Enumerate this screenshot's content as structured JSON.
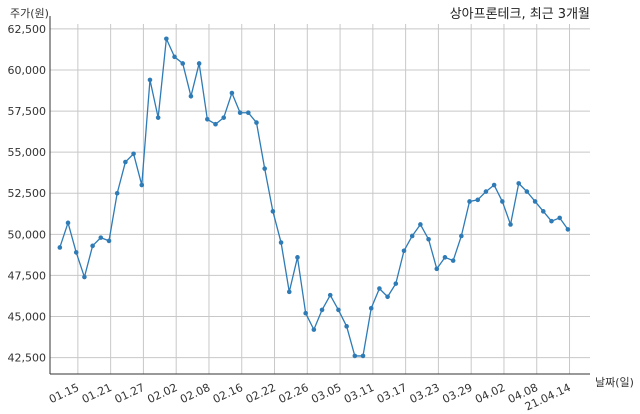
{
  "chart_data": {
    "type": "line",
    "title": "상아프론테크, 최근 3개월",
    "ylabel": "주가(원)",
    "xlabel": "날짜(일)",
    "ylim": [
      41500,
      62800
    ],
    "yticks": [
      42500,
      45000,
      47500,
      50000,
      52500,
      55000,
      57500,
      60000,
      62500
    ],
    "ytick_labels": [
      "42,500",
      "45,000",
      "47,500",
      "50,000",
      "52,500",
      "55,000",
      "57,500",
      "60,000",
      "62,500"
    ],
    "xticks": [
      {
        "index": 2.2,
        "label": "01.15"
      },
      {
        "index": 6.2,
        "label": "01.21"
      },
      {
        "index": 10.2,
        "label": "01.27"
      },
      {
        "index": 14.2,
        "label": "02.02"
      },
      {
        "index": 18.2,
        "label": "02.08"
      },
      {
        "index": 22.2,
        "label": "02.16"
      },
      {
        "index": 26.2,
        "label": "02.22"
      },
      {
        "index": 30.2,
        "label": "02.26"
      },
      {
        "index": 34.2,
        "label": "03.05"
      },
      {
        "index": 38.2,
        "label": "03.11"
      },
      {
        "index": 42.2,
        "label": "03.17"
      },
      {
        "index": 46.2,
        "label": "03.23"
      },
      {
        "index": 50.2,
        "label": "03.29"
      },
      {
        "index": 54.2,
        "label": "04.02"
      },
      {
        "index": 58.2,
        "label": "04.08"
      },
      {
        "index": 62.2,
        "label": "21.04.14"
      }
    ],
    "xlim": [
      -1.2,
      64.7
    ],
    "color": "#2e7bb6",
    "grid": true,
    "series": [
      {
        "values": [
          49200,
          50700,
          48900,
          47400,
          49300,
          49800,
          49600,
          52500,
          54400,
          54900,
          53000,
          59400,
          57100,
          61900,
          60800,
          60400,
          58400,
          60400,
          57000,
          56700,
          57100,
          58600,
          57400,
          57400,
          56800,
          54000,
          51400,
          49500,
          46500,
          48600,
          45200,
          44200,
          45400,
          46300,
          45400,
          44400,
          42600,
          42600,
          45500,
          46700,
          46200,
          47000,
          49000,
          49900,
          50600,
          49700,
          47900,
          48600,
          48400,
          49900,
          52000,
          52100,
          52600,
          53000,
          52000,
          50600,
          53100,
          52600,
          52000,
          51400,
          50800,
          51000,
          50300
        ]
      }
    ]
  }
}
